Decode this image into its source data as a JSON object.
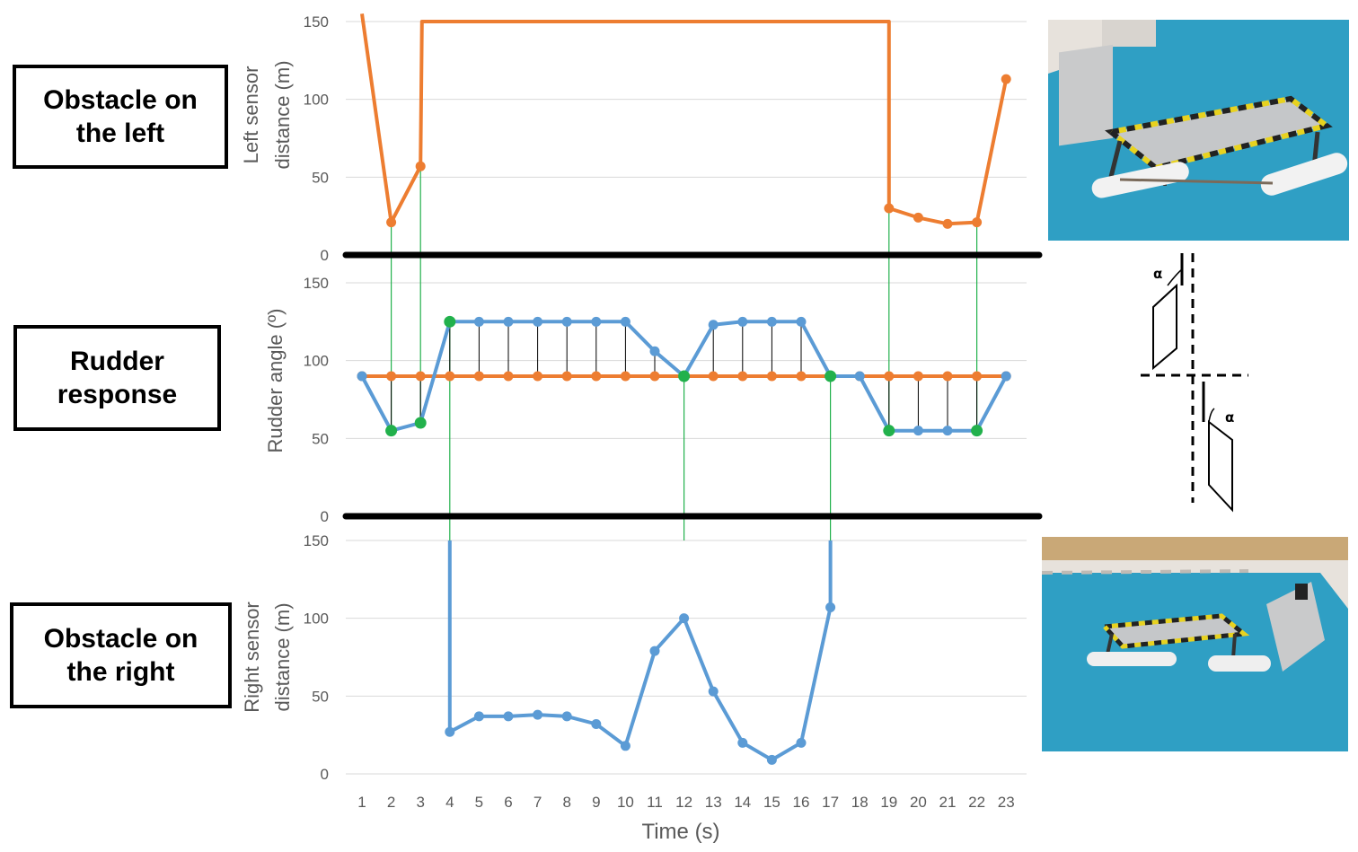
{
  "labels": {
    "left": "Obstacle on\nthe left",
    "rudder": "Rudder\nresponse",
    "right": "Obstacle on\nthe right"
  },
  "diagram": {
    "alpha_symbol": "α"
  },
  "colors": {
    "orange": "#ED7D31",
    "blue": "#5B9BD5",
    "green": "#22B14C",
    "divider": "#000000",
    "grid": "#D9D9D9",
    "tick_text": "#595959",
    "pool_water": "#2f9fc4",
    "pool_deck": "#e7e2dc",
    "panel": "#c9cacb"
  },
  "chart_data": [
    {
      "type": "line",
      "panel": "top",
      "ylabel_lines": [
        "Left sensor",
        "distance (m)"
      ],
      "xlabel": "",
      "ylim": [
        0,
        150
      ],
      "yticks": [
        0,
        50,
        100,
        150
      ],
      "grid": true,
      "series": [
        {
          "points": [
            [
              1,
              155
            ],
            [
              2,
              21
            ],
            [
              3,
              57
            ],
            [
              3.05,
              150
            ],
            [
              19,
              150
            ],
            [
              19,
              30
            ],
            [
              20,
              24
            ],
            [
              21,
              20
            ],
            [
              22,
              21
            ],
            [
              23,
              113
            ]
          ]
        }
      ]
    },
    {
      "type": "line",
      "panel": "middle",
      "ylabel_lines": [
        "Rudder angle (º)"
      ],
      "xlabel": "",
      "ylim": [
        0,
        150
      ],
      "yticks": [
        0,
        50,
        100,
        150
      ],
      "grid": true,
      "series": [
        {
          "color_key": "orange",
          "points": [
            [
              1,
              90
            ],
            [
              2,
              90
            ],
            [
              3,
              90
            ],
            [
              4,
              90
            ],
            [
              5,
              90
            ],
            [
              6,
              90
            ],
            [
              7,
              90
            ],
            [
              8,
              90
            ],
            [
              9,
              90
            ],
            [
              10,
              90
            ],
            [
              11,
              90
            ],
            [
              12,
              90
            ],
            [
              13,
              90
            ],
            [
              14,
              90
            ],
            [
              15,
              90
            ],
            [
              16,
              90
            ],
            [
              17,
              90
            ],
            [
              18,
              90
            ],
            [
              19,
              90
            ],
            [
              20,
              90
            ],
            [
              21,
              90
            ],
            [
              22,
              90
            ],
            [
              23,
              90
            ]
          ]
        },
        {
          "color_key": "blue",
          "points": [
            [
              1,
              90
            ],
            [
              2,
              55
            ],
            [
              3,
              60
            ],
            [
              4,
              125
            ],
            [
              5,
              125
            ],
            [
              6,
              125
            ],
            [
              7,
              125
            ],
            [
              8,
              125
            ],
            [
              9,
              125
            ],
            [
              10,
              125
            ],
            [
              11,
              106
            ],
            [
              12,
              90
            ],
            [
              13,
              123
            ],
            [
              14,
              125
            ],
            [
              15,
              125
            ],
            [
              16,
              125
            ],
            [
              17,
              90
            ],
            [
              18,
              90
            ],
            [
              19,
              55
            ],
            [
              20,
              55
            ],
            [
              21,
              55
            ],
            [
              22,
              55
            ],
            [
              23,
              90
            ]
          ]
        }
      ],
      "highlight_points": [
        [
          2,
          55
        ],
        [
          3,
          60
        ],
        [
          4,
          125
        ],
        [
          12,
          90
        ],
        [
          17,
          90
        ],
        [
          19,
          55
        ],
        [
          22,
          55
        ]
      ]
    },
    {
      "type": "line",
      "panel": "bottom",
      "ylabel_lines": [
        "Right sensor",
        "distance (m)"
      ],
      "xlabel": "Time (s)",
      "categories": [
        "1",
        "2",
        "3",
        "4",
        "5",
        "6",
        "7",
        "8",
        "9",
        "10",
        "11",
        "12",
        "13",
        "14",
        "15",
        "16",
        "17",
        "18",
        "19",
        "20",
        "21",
        "22",
        "23"
      ],
      "ylim": [
        0,
        150
      ],
      "yticks": [
        0,
        50,
        100,
        150
      ],
      "grid": true,
      "series": [
        {
          "points": [
            [
              4,
              157
            ],
            [
              4,
              27
            ],
            [
              5,
              37
            ],
            [
              6,
              37
            ],
            [
              7,
              38
            ],
            [
              8,
              37
            ],
            [
              9,
              32
            ],
            [
              10,
              18
            ],
            [
              11,
              79
            ],
            [
              12,
              100
            ],
            [
              13,
              53
            ],
            [
              14,
              20
            ],
            [
              15,
              9
            ],
            [
              16,
              20
            ],
            [
              17,
              107
            ],
            [
              17,
              157
            ]
          ]
        }
      ]
    }
  ],
  "guide_lines_x": [
    2,
    3,
    4,
    12,
    17,
    19,
    22
  ]
}
